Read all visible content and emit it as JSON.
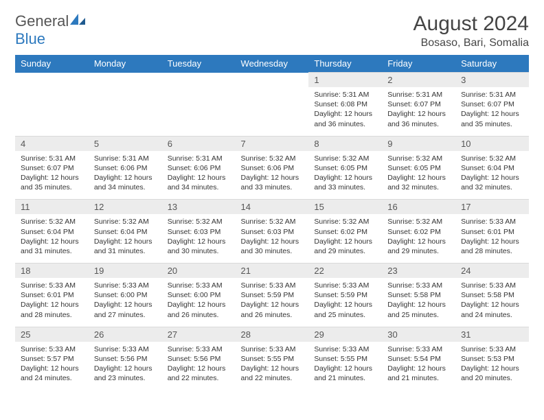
{
  "brand": {
    "text_general": "General",
    "text_blue": "Blue",
    "sail_color": "#2d79be"
  },
  "title": "August 2024",
  "location": "Bosaso, Bari, Somalia",
  "colors": {
    "header_bg": "#2d79be",
    "header_text": "#ffffff",
    "daynum_bg": "#ececec",
    "body_bg": "#ffffff",
    "text": "#333333"
  },
  "day_headers": [
    "Sunday",
    "Monday",
    "Tuesday",
    "Wednesday",
    "Thursday",
    "Friday",
    "Saturday"
  ],
  "labels": {
    "sunrise": "Sunrise:",
    "sunset": "Sunset:",
    "daylight": "Daylight:"
  },
  "weeks": [
    [
      null,
      null,
      null,
      null,
      {
        "n": "1",
        "sunrise": "5:31 AM",
        "sunset": "6:08 PM",
        "daylight": "12 hours and 36 minutes."
      },
      {
        "n": "2",
        "sunrise": "5:31 AM",
        "sunset": "6:07 PM",
        "daylight": "12 hours and 36 minutes."
      },
      {
        "n": "3",
        "sunrise": "5:31 AM",
        "sunset": "6:07 PM",
        "daylight": "12 hours and 35 minutes."
      }
    ],
    [
      {
        "n": "4",
        "sunrise": "5:31 AM",
        "sunset": "6:07 PM",
        "daylight": "12 hours and 35 minutes."
      },
      {
        "n": "5",
        "sunrise": "5:31 AM",
        "sunset": "6:06 PM",
        "daylight": "12 hours and 34 minutes."
      },
      {
        "n": "6",
        "sunrise": "5:31 AM",
        "sunset": "6:06 PM",
        "daylight": "12 hours and 34 minutes."
      },
      {
        "n": "7",
        "sunrise": "5:32 AM",
        "sunset": "6:06 PM",
        "daylight": "12 hours and 33 minutes."
      },
      {
        "n": "8",
        "sunrise": "5:32 AM",
        "sunset": "6:05 PM",
        "daylight": "12 hours and 33 minutes."
      },
      {
        "n": "9",
        "sunrise": "5:32 AM",
        "sunset": "6:05 PM",
        "daylight": "12 hours and 32 minutes."
      },
      {
        "n": "10",
        "sunrise": "5:32 AM",
        "sunset": "6:04 PM",
        "daylight": "12 hours and 32 minutes."
      }
    ],
    [
      {
        "n": "11",
        "sunrise": "5:32 AM",
        "sunset": "6:04 PM",
        "daylight": "12 hours and 31 minutes."
      },
      {
        "n": "12",
        "sunrise": "5:32 AM",
        "sunset": "6:04 PM",
        "daylight": "12 hours and 31 minutes."
      },
      {
        "n": "13",
        "sunrise": "5:32 AM",
        "sunset": "6:03 PM",
        "daylight": "12 hours and 30 minutes."
      },
      {
        "n": "14",
        "sunrise": "5:32 AM",
        "sunset": "6:03 PM",
        "daylight": "12 hours and 30 minutes."
      },
      {
        "n": "15",
        "sunrise": "5:32 AM",
        "sunset": "6:02 PM",
        "daylight": "12 hours and 29 minutes."
      },
      {
        "n": "16",
        "sunrise": "5:32 AM",
        "sunset": "6:02 PM",
        "daylight": "12 hours and 29 minutes."
      },
      {
        "n": "17",
        "sunrise": "5:33 AM",
        "sunset": "6:01 PM",
        "daylight": "12 hours and 28 minutes."
      }
    ],
    [
      {
        "n": "18",
        "sunrise": "5:33 AM",
        "sunset": "6:01 PM",
        "daylight": "12 hours and 28 minutes."
      },
      {
        "n": "19",
        "sunrise": "5:33 AM",
        "sunset": "6:00 PM",
        "daylight": "12 hours and 27 minutes."
      },
      {
        "n": "20",
        "sunrise": "5:33 AM",
        "sunset": "6:00 PM",
        "daylight": "12 hours and 26 minutes."
      },
      {
        "n": "21",
        "sunrise": "5:33 AM",
        "sunset": "5:59 PM",
        "daylight": "12 hours and 26 minutes."
      },
      {
        "n": "22",
        "sunrise": "5:33 AM",
        "sunset": "5:59 PM",
        "daylight": "12 hours and 25 minutes."
      },
      {
        "n": "23",
        "sunrise": "5:33 AM",
        "sunset": "5:58 PM",
        "daylight": "12 hours and 25 minutes."
      },
      {
        "n": "24",
        "sunrise": "5:33 AM",
        "sunset": "5:58 PM",
        "daylight": "12 hours and 24 minutes."
      }
    ],
    [
      {
        "n": "25",
        "sunrise": "5:33 AM",
        "sunset": "5:57 PM",
        "daylight": "12 hours and 24 minutes."
      },
      {
        "n": "26",
        "sunrise": "5:33 AM",
        "sunset": "5:56 PM",
        "daylight": "12 hours and 23 minutes."
      },
      {
        "n": "27",
        "sunrise": "5:33 AM",
        "sunset": "5:56 PM",
        "daylight": "12 hours and 22 minutes."
      },
      {
        "n": "28",
        "sunrise": "5:33 AM",
        "sunset": "5:55 PM",
        "daylight": "12 hours and 22 minutes."
      },
      {
        "n": "29",
        "sunrise": "5:33 AM",
        "sunset": "5:55 PM",
        "daylight": "12 hours and 21 minutes."
      },
      {
        "n": "30",
        "sunrise": "5:33 AM",
        "sunset": "5:54 PM",
        "daylight": "12 hours and 21 minutes."
      },
      {
        "n": "31",
        "sunrise": "5:33 AM",
        "sunset": "5:53 PM",
        "daylight": "12 hours and 20 minutes."
      }
    ]
  ]
}
